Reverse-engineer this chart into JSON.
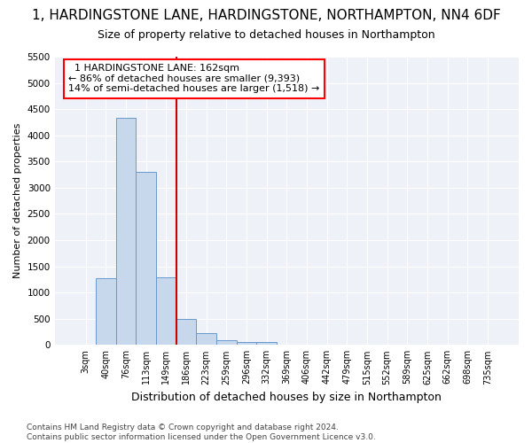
{
  "title_line1": "1, HARDINGSTONE LANE, HARDINGSTONE, NORTHAMPTON, NN4 6DF",
  "title_line2": "Size of property relative to detached houses in Northampton",
  "xlabel": "Distribution of detached houses by size in Northampton",
  "ylabel": "Number of detached properties",
  "footnote": "Contains HM Land Registry data © Crown copyright and database right 2024.\nContains public sector information licensed under the Open Government Licence v3.0.",
  "bin_labels": [
    "3sqm",
    "40sqm",
    "76sqm",
    "113sqm",
    "149sqm",
    "186sqm",
    "223sqm",
    "259sqm",
    "296sqm",
    "332sqm",
    "369sqm",
    "406sqm",
    "442sqm",
    "479sqm",
    "515sqm",
    "552sqm",
    "589sqm",
    "625sqm",
    "662sqm",
    "698sqm",
    "735sqm"
  ],
  "bar_heights": [
    0,
    1270,
    4330,
    3300,
    1290,
    490,
    220,
    90,
    60,
    50,
    0,
    0,
    0,
    0,
    0,
    0,
    0,
    0,
    0,
    0,
    0
  ],
  "bar_color": "#c8d8ec",
  "bar_edge_color": "#6699cc",
  "annotation_text": "  1 HARDINGSTONE LANE: 162sqm\n← 86% of detached houses are smaller (9,393)\n14% of semi-detached houses are larger (1,518) →",
  "annotation_box_facecolor": "white",
  "annotation_box_edgecolor": "red",
  "vline_color": "#cc0000",
  "vline_x": 4.5,
  "ylim": [
    0,
    5500
  ],
  "yticks": [
    0,
    500,
    1000,
    1500,
    2000,
    2500,
    3000,
    3500,
    4000,
    4500,
    5000,
    5500
  ],
  "background_color": "#ffffff",
  "plot_bg_color": "#eef2f8",
  "grid_color": "#ffffff",
  "title1_fontsize": 11,
  "title2_fontsize": 9,
  "xlabel_fontsize": 9,
  "ylabel_fontsize": 8,
  "tick_fontsize": 7,
  "footnote_fontsize": 6.5
}
